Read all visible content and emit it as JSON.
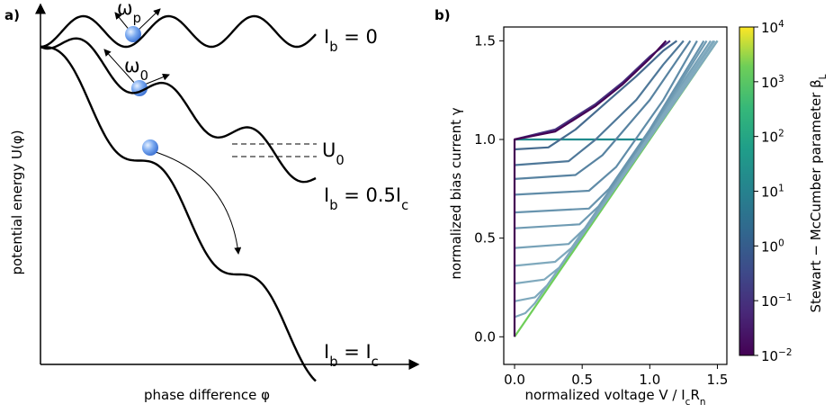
{
  "panel_a": {
    "panel_label": "a)",
    "y_label": "potential energy U(φ)",
    "x_label": "phase difference φ",
    "omega_p": [
      "ω",
      "p"
    ],
    "omega_0": [
      "ω",
      "0"
    ],
    "barrier": [
      "U",
      "0"
    ],
    "curve_labels": [
      [
        "I",
        "b",
        " = 0"
      ],
      [
        "I",
        "b",
        " = 0.5I",
        "c"
      ],
      [
        "I",
        "b",
        " = I",
        "c"
      ]
    ]
  },
  "chart_data": {
    "type": "line",
    "panel_label": "b)",
    "x_label": [
      "normalized voltage V / I",
      "c",
      "R",
      "n"
    ],
    "y_label": "normalized bias current γ",
    "xlim": [
      -0.08,
      1.57
    ],
    "ylim": [
      -0.14,
      1.57
    ],
    "xticks": [
      {
        "value": 0,
        "label": "0.0"
      },
      {
        "value": 0.5,
        "label": "0.5"
      },
      {
        "value": 1,
        "label": "1.0"
      },
      {
        "value": 1.5,
        "label": "1.5"
      }
    ],
    "yticks": [
      {
        "value": 0,
        "label": "0.0"
      },
      {
        "value": 0.5,
        "label": "0.5"
      },
      {
        "value": 1,
        "label": "1.0"
      },
      {
        "value": 1.5,
        "label": "1.5"
      }
    ],
    "series": [
      {
        "color": "#6ece58",
        "x": [
          0,
          1.5
        ],
        "values": [
          0,
          1.5
        ]
      },
      {
        "color": "#1f8a8c",
        "x": [
          0,
          1.0
        ],
        "values": [
          1,
          1
        ]
      },
      {
        "color": "#7fa9bd",
        "x": [
          0,
          0.08,
          0.15,
          1.5
        ],
        "values": [
          0.1,
          0.12,
          0.17,
          1.5
        ]
      },
      {
        "color": "#7fa9bd",
        "x": [
          0,
          0.15,
          0.24,
          1.5
        ],
        "values": [
          0.18,
          0.2,
          0.26,
          1.5
        ]
      },
      {
        "color": "#7fa9bd",
        "x": [
          0,
          0.22,
          0.33,
          1.48
        ],
        "values": [
          0.27,
          0.29,
          0.35,
          1.5
        ]
      },
      {
        "color": "#7fa9bd",
        "x": [
          0,
          0.3,
          0.42,
          1.47
        ],
        "values": [
          0.36,
          0.38,
          0.45,
          1.5
        ]
      },
      {
        "color": "#77a2b8",
        "x": [
          0,
          0.4,
          0.52,
          1.45
        ],
        "values": [
          0.45,
          0.47,
          0.55,
          1.5
        ]
      },
      {
        "color": "#6f9bb3",
        "x": [
          0,
          0.48,
          0.62,
          1.0,
          1.42
        ],
        "values": [
          0.55,
          0.57,
          0.66,
          1.04,
          1.5
        ]
      },
      {
        "color": "#6894ae",
        "x": [
          0,
          0.55,
          0.7,
          1.0,
          1.4
        ],
        "values": [
          0.63,
          0.65,
          0.75,
          1.05,
          1.5
        ]
      },
      {
        "color": "#608ca8",
        "x": [
          0,
          0.55,
          0.75,
          1.1,
          1.35
        ],
        "values": [
          0.72,
          0.74,
          0.86,
          1.2,
          1.5
        ]
      },
      {
        "color": "#5883a1",
        "x": [
          0,
          0.45,
          0.65,
          1.0,
          1.3
        ],
        "values": [
          0.8,
          0.82,
          0.92,
          1.2,
          1.5
        ]
      },
      {
        "color": "#4f7899",
        "x": [
          0,
          0.4,
          0.6,
          0.9,
          1.1,
          1.25
        ],
        "values": [
          0.87,
          0.89,
          1.0,
          1.2,
          1.38,
          1.5
        ]
      },
      {
        "color": "#466b8f",
        "x": [
          0,
          0.25,
          0.45,
          0.7,
          0.9,
          1.1,
          1.2
        ],
        "values": [
          0.95,
          0.96,
          1.05,
          1.2,
          1.32,
          1.45,
          1.5
        ]
      },
      {
        "color": "#46317e",
        "x": [
          0,
          0.3,
          0.6,
          0.8,
          1.0,
          1.15
        ],
        "values": [
          1,
          1.05,
          1.18,
          1.29,
          1.42,
          1.5
        ]
      },
      {
        "color": "#440154",
        "x": [
          0,
          0,
          0.3,
          0.6,
          0.8,
          1.0,
          1.12
        ],
        "values": [
          0,
          1,
          1.04,
          1.17,
          1.28,
          1.41,
          1.5
        ]
      }
    ],
    "colorbar": {
      "label": [
        "Stewart − McCumber parameter β",
        "L"
      ],
      "lim": [
        0.01,
        10000
      ],
      "log": true,
      "ticks": [
        {
          "value": 0.01,
          "label": [
            "10",
            "−2"
          ]
        },
        {
          "value": 0.1,
          "label": [
            "10",
            "−1"
          ]
        },
        {
          "value": 1,
          "label": [
            "10",
            "0"
          ]
        },
        {
          "value": 10,
          "label": [
            "10",
            "1"
          ]
        },
        {
          "value": 100,
          "label": [
            "10",
            "2"
          ]
        },
        {
          "value": 1000,
          "label": [
            "10",
            "3"
          ]
        },
        {
          "value": 10000,
          "label": [
            "10",
            "4"
          ]
        }
      ]
    }
  }
}
